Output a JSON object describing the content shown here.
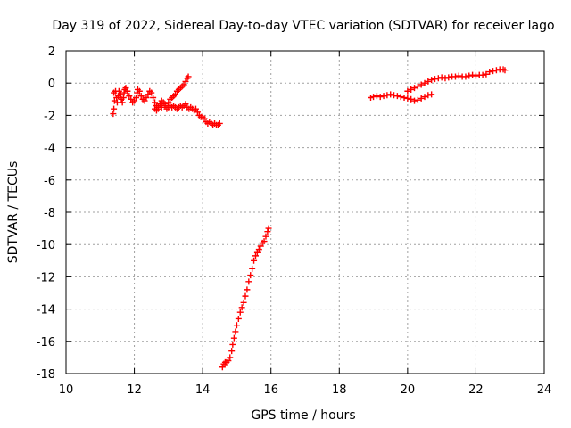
{
  "chart_data": {
    "type": "scatter",
    "title": "Day 319 of 2022, Sidereal Day-to-day VTEC variation (SDTVAR) for receiver lago",
    "xlabel": "GPS time / hours",
    "ylabel": "SDTVAR / TECUs",
    "xlim": [
      10,
      24
    ],
    "ylim": [
      -18,
      2
    ],
    "xticks": [
      10,
      12,
      14,
      16,
      18,
      20,
      22,
      24
    ],
    "yticks": [
      2,
      0,
      -2,
      -4,
      -6,
      -8,
      -10,
      -12,
      -14,
      -16,
      -18
    ],
    "grid": true,
    "marker": "+",
    "color": "#ff0000",
    "series": [
      {
        "name": "segment-1",
        "points": [
          [
            11.38,
            -1.9
          ],
          [
            11.4,
            -1.6
          ],
          [
            11.42,
            -1.1
          ],
          [
            11.4,
            -0.6
          ],
          [
            11.45,
            -0.5
          ],
          [
            11.48,
            -0.9
          ],
          [
            11.5,
            -1.2
          ],
          [
            11.53,
            -0.8
          ],
          [
            11.55,
            -0.5
          ],
          [
            11.6,
            -0.7
          ],
          [
            11.62,
            -1.0
          ],
          [
            11.65,
            -1.2
          ],
          [
            11.68,
            -0.9
          ],
          [
            11.7,
            -0.6
          ],
          [
            11.72,
            -0.4
          ],
          [
            11.75,
            -0.3
          ],
          [
            11.8,
            -0.5
          ],
          [
            11.85,
            -0.8
          ],
          [
            11.9,
            -1.0
          ],
          [
            11.95,
            -1.2
          ],
          [
            12.0,
            -1.1
          ],
          [
            12.05,
            -0.9
          ],
          [
            12.08,
            -0.6
          ],
          [
            12.1,
            -0.4
          ],
          [
            12.15,
            -0.5
          ],
          [
            12.2,
            -0.8
          ],
          [
            12.25,
            -1.0
          ],
          [
            12.3,
            -1.1
          ],
          [
            12.35,
            -0.9
          ],
          [
            12.4,
            -0.7
          ],
          [
            12.45,
            -0.5
          ],
          [
            12.5,
            -0.6
          ],
          [
            12.55,
            -0.9
          ],
          [
            12.6,
            -1.2
          ],
          [
            12.65,
            -1.4
          ],
          [
            12.7,
            -1.5
          ],
          [
            12.75,
            -1.3
          ],
          [
            12.8,
            -1.1
          ],
          [
            12.85,
            -1.2
          ],
          [
            12.9,
            -1.4
          ],
          [
            12.95,
            -1.6
          ],
          [
            13.0,
            -1.5
          ],
          [
            13.05,
            -1.4
          ],
          [
            13.1,
            -1.5
          ],
          [
            13.15,
            -1.4
          ],
          [
            13.2,
            -1.5
          ],
          [
            13.25,
            -1.6
          ],
          [
            13.3,
            -1.5
          ],
          [
            13.35,
            -1.4
          ],
          [
            13.4,
            -1.5
          ],
          [
            13.45,
            -1.4
          ],
          [
            13.5,
            -1.3
          ],
          [
            13.55,
            -1.5
          ],
          [
            13.6,
            -1.6
          ],
          [
            13.65,
            -1.5
          ],
          [
            13.7,
            -1.6
          ],
          [
            13.75,
            -1.7
          ],
          [
            13.8,
            -1.6
          ],
          [
            13.85,
            -1.8
          ],
          [
            13.9,
            -2.0
          ],
          [
            13.95,
            -2.1
          ],
          [
            14.0,
            -2.1
          ],
          [
            14.05,
            -2.2
          ],
          [
            14.1,
            -2.4
          ],
          [
            14.15,
            -2.5
          ],
          [
            14.2,
            -2.4
          ],
          [
            14.25,
            -2.5
          ],
          [
            14.3,
            -2.6
          ],
          [
            14.35,
            -2.5
          ],
          [
            14.4,
            -2.6
          ],
          [
            14.45,
            -2.6
          ],
          [
            14.5,
            -2.5
          ],
          [
            12.6,
            -1.6
          ],
          [
            12.65,
            -1.7
          ],
          [
            12.7,
            -1.6
          ],
          [
            12.8,
            -1.5
          ],
          [
            12.9,
            -1.3
          ],
          [
            13.0,
            -1.2
          ],
          [
            13.05,
            -1.0
          ],
          [
            13.1,
            -0.9
          ],
          [
            13.15,
            -0.8
          ],
          [
            13.2,
            -0.7
          ],
          [
            13.25,
            -0.5
          ],
          [
            13.3,
            -0.4
          ],
          [
            13.35,
            -0.3
          ],
          [
            13.4,
            -0.2
          ],
          [
            13.45,
            -0.1
          ],
          [
            13.5,
            0.1
          ],
          [
            13.55,
            0.3
          ],
          [
            13.58,
            0.4
          ]
        ]
      },
      {
        "name": "segment-2",
        "points": [
          [
            14.58,
            -17.6
          ],
          [
            14.62,
            -17.4
          ],
          [
            14.66,
            -17.3
          ],
          [
            14.7,
            -17.3
          ],
          [
            14.75,
            -17.2
          ],
          [
            14.8,
            -17.0
          ],
          [
            14.85,
            -16.6
          ],
          [
            14.88,
            -16.2
          ],
          [
            14.92,
            -15.8
          ],
          [
            14.96,
            -15.4
          ],
          [
            15.0,
            -15.0
          ],
          [
            15.05,
            -14.6
          ],
          [
            15.1,
            -14.2
          ],
          [
            15.15,
            -13.9
          ],
          [
            15.2,
            -13.6
          ],
          [
            15.25,
            -13.2
          ],
          [
            15.3,
            -12.8
          ],
          [
            15.35,
            -12.3
          ],
          [
            15.4,
            -11.9
          ],
          [
            15.45,
            -11.5
          ],
          [
            15.5,
            -11.0
          ],
          [
            15.55,
            -10.7
          ],
          [
            15.6,
            -10.5
          ],
          [
            15.65,
            -10.3
          ],
          [
            15.7,
            -10.1
          ],
          [
            15.75,
            -9.9
          ],
          [
            15.8,
            -9.8
          ],
          [
            15.85,
            -9.5
          ],
          [
            15.9,
            -9.2
          ],
          [
            15.93,
            -9.0
          ]
        ]
      },
      {
        "name": "segment-3",
        "points": [
          [
            18.92,
            -0.9
          ],
          [
            19.0,
            -0.85
          ],
          [
            19.1,
            -0.8
          ],
          [
            19.2,
            -0.85
          ],
          [
            19.3,
            -0.8
          ],
          [
            19.4,
            -0.75
          ],
          [
            19.5,
            -0.7
          ],
          [
            19.6,
            -0.75
          ],
          [
            19.7,
            -0.8
          ],
          [
            19.8,
            -0.85
          ],
          [
            19.9,
            -0.9
          ],
          [
            20.0,
            -0.95
          ],
          [
            20.1,
            -1.0
          ],
          [
            20.2,
            -1.1
          ],
          [
            20.3,
            -1.05
          ],
          [
            20.4,
            -0.95
          ],
          [
            20.5,
            -0.85
          ],
          [
            20.6,
            -0.75
          ],
          [
            20.7,
            -0.7
          ],
          [
            20.0,
            -0.5
          ],
          [
            20.1,
            -0.4
          ],
          [
            20.2,
            -0.3
          ],
          [
            20.3,
            -0.2
          ],
          [
            20.4,
            -0.1
          ],
          [
            20.5,
            0.0
          ],
          [
            20.6,
            0.1
          ],
          [
            20.7,
            0.2
          ],
          [
            20.8,
            0.25
          ],
          [
            20.9,
            0.3
          ],
          [
            21.0,
            0.35
          ],
          [
            21.1,
            0.3
          ],
          [
            21.2,
            0.35
          ],
          [
            21.3,
            0.4
          ],
          [
            21.4,
            0.4
          ],
          [
            21.5,
            0.45
          ],
          [
            21.6,
            0.4
          ],
          [
            21.7,
            0.4
          ],
          [
            21.8,
            0.45
          ],
          [
            21.9,
            0.5
          ],
          [
            22.0,
            0.45
          ],
          [
            22.1,
            0.5
          ],
          [
            22.2,
            0.5
          ],
          [
            22.3,
            0.55
          ],
          [
            22.4,
            0.7
          ],
          [
            22.5,
            0.75
          ],
          [
            22.6,
            0.8
          ],
          [
            22.7,
            0.85
          ],
          [
            22.8,
            0.85
          ],
          [
            22.85,
            0.8
          ]
        ]
      }
    ]
  }
}
